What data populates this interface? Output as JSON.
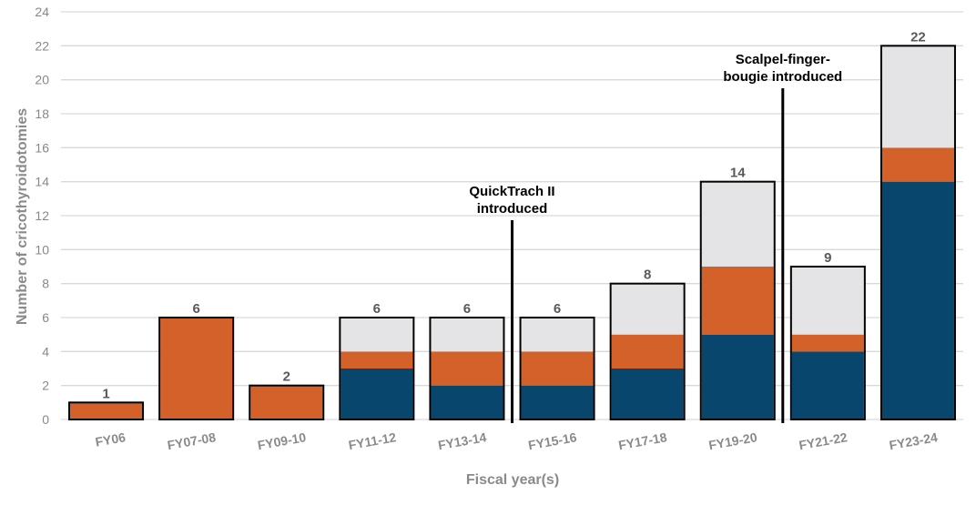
{
  "chart_data": {
    "type": "bar",
    "stacked": true,
    "categories": [
      "FY06",
      "FY07-08",
      "FY09-10",
      "FY11-12",
      "FY13-14",
      "FY15-16",
      "FY17-18",
      "FY19-20",
      "FY21-22",
      "FY23-24"
    ],
    "series": [
      {
        "color": "#08466E",
        "values": [
          0,
          0,
          0,
          3,
          2,
          2,
          3,
          5,
          4,
          14
        ]
      },
      {
        "color": "#D4602A",
        "values": [
          1,
          6,
          2,
          1,
          2,
          2,
          2,
          4,
          1,
          2
        ]
      },
      {
        "color": "#E4E4E6",
        "values": [
          0,
          0,
          0,
          2,
          2,
          2,
          3,
          5,
          4,
          6
        ]
      }
    ],
    "totals": [
      1,
      6,
      2,
      6,
      6,
      6,
      8,
      14,
      9,
      22
    ],
    "total_labels": [
      "1",
      "6",
      "2",
      "6",
      "6",
      "6",
      "8",
      "14",
      "9",
      "22"
    ],
    "xlabel": "Fiscal year(s)",
    "ylabel": "Number of cricothyroidotomies",
    "ylim": [
      0,
      24
    ],
    "yticks": [
      0,
      2,
      4,
      6,
      8,
      10,
      12,
      14,
      16,
      18,
      20,
      22,
      24
    ],
    "grid": true,
    "annotations": [
      {
        "lines": [
          "QuickTrach II",
          "introduced"
        ],
        "between": [
          "FY13-14",
          "FY15-16"
        ]
      },
      {
        "lines": [
          "Scalpel-finger-",
          "bougie introduced"
        ],
        "between": [
          "FY19-20",
          "FY21-22"
        ]
      }
    ]
  }
}
